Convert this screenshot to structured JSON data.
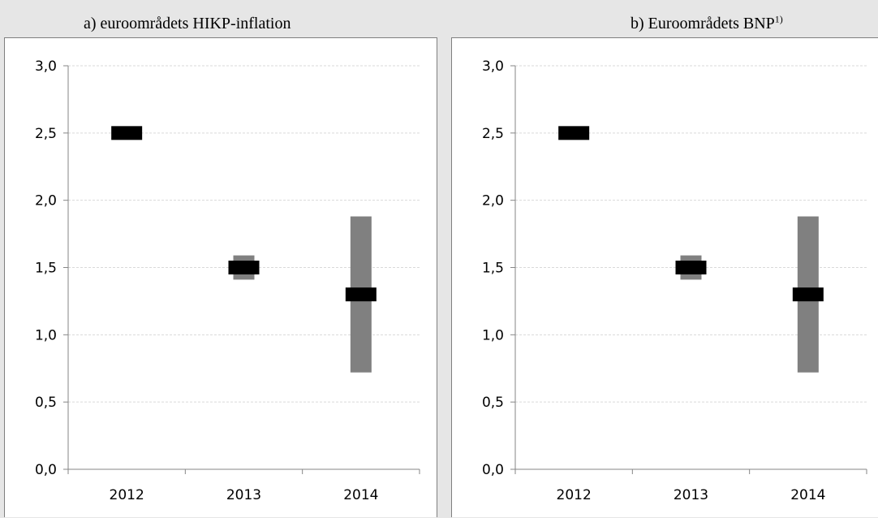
{
  "chart_data": [
    {
      "type": "range",
      "title": "a) euroområdets HIKP-inflation",
      "title_sup": "",
      "categories": [
        "2012",
        "2013",
        "2014"
      ],
      "ylim": [
        0,
        3
      ],
      "yticks": [
        "0,0",
        "0,5",
        "1,0",
        "1,5",
        "2,0",
        "2,5",
        "3,0"
      ],
      "ytick_values": [
        0,
        0.5,
        1.0,
        1.5,
        2.0,
        2.5,
        3.0
      ],
      "grid": true,
      "ranges": [
        {
          "low": 2.5,
          "high": 2.5
        },
        {
          "low": 1.41,
          "high": 1.59
        },
        {
          "low": 0.72,
          "high": 1.88
        }
      ],
      "midpoints": [
        2.5,
        1.5,
        1.3
      ],
      "range_color": "#808080",
      "mid_color": "#000000"
    },
    {
      "type": "range",
      "title": "b) Euroområdets BNP",
      "title_sup": "1)",
      "categories": [
        "2012",
        "2013",
        "2014"
      ],
      "ylim": [
        0,
        3
      ],
      "yticks": [
        "0,0",
        "0,5",
        "1,0",
        "1,5",
        "2,0",
        "2,5",
        "3,0"
      ],
      "ytick_values": [
        0,
        0.5,
        1.0,
        1.5,
        2.0,
        2.5,
        3.0
      ],
      "grid": true,
      "ranges": [
        {
          "low": 2.5,
          "high": 2.5
        },
        {
          "low": 1.41,
          "high": 1.59
        },
        {
          "low": 0.72,
          "high": 1.88
        }
      ],
      "midpoints": [
        2.5,
        1.5,
        1.3
      ],
      "range_color": "#808080",
      "mid_color": "#000000"
    }
  ]
}
